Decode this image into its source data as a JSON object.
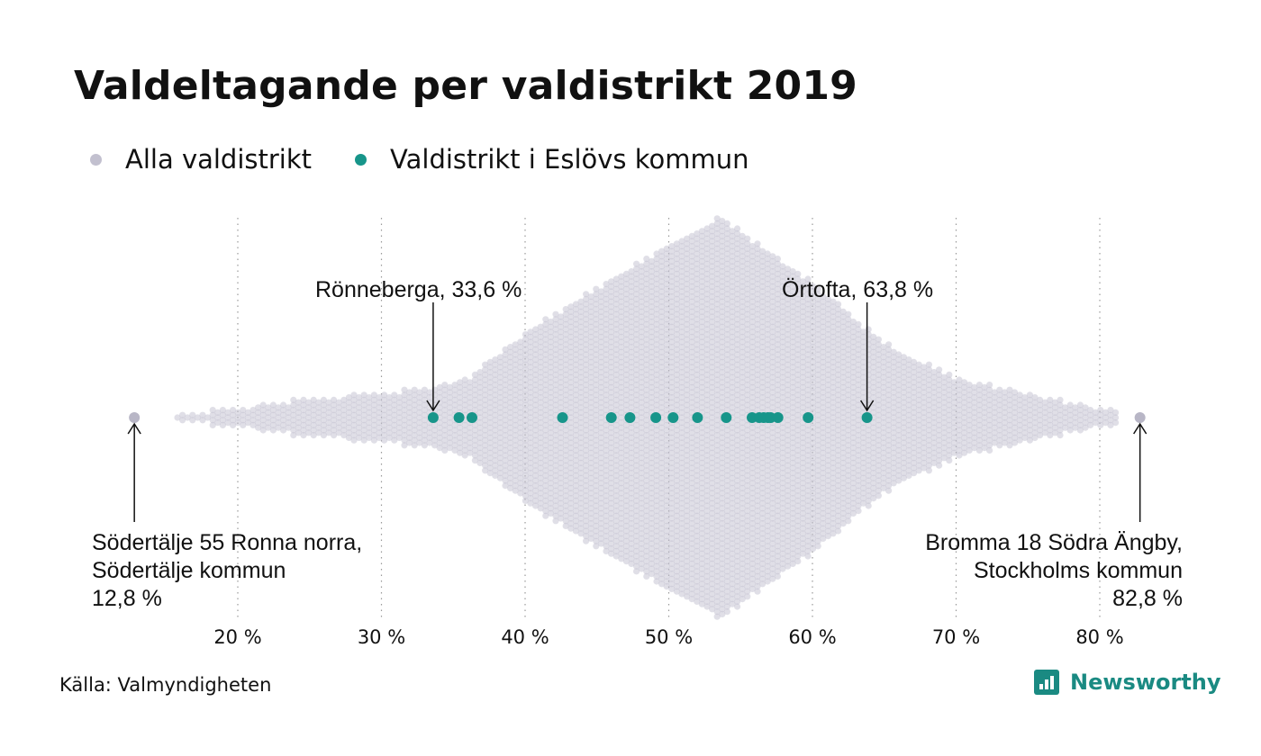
{
  "title": "Valdeltagande per valdistrikt 2019",
  "legend": [
    {
      "label": "Alla valdistrikt",
      "color": "#c2c0cf"
    },
    {
      "label": "Valdistrikt i Eslövs kommun",
      "color": "#17958a"
    }
  ],
  "source": "Källa: Valmyndigheten",
  "brand": "Newsworthy",
  "chart_data": {
    "type": "scatter",
    "subtype": "beeswarm",
    "xlim": [
      12,
      84
    ],
    "x_ticks": [
      20,
      30,
      40,
      50,
      60,
      70,
      80
    ],
    "x_tick_labels": [
      "20 %",
      "30 %",
      "40 %",
      "50 %",
      "60 %",
      "70 %",
      "80 %"
    ],
    "grid": "vertical dotted",
    "legend_position": "top-left",
    "series": [
      {
        "name": "Alla valdistrikt",
        "color": "#c2c0cf",
        "distribution_profile": [
          [
            12.8,
            1
          ],
          [
            16,
            1
          ],
          [
            20,
            2
          ],
          [
            25,
            4
          ],
          [
            30,
            5
          ],
          [
            33,
            6
          ],
          [
            36,
            8
          ],
          [
            40,
            17
          ],
          [
            45,
            26
          ],
          [
            48,
            31
          ],
          [
            51,
            36
          ],
          [
            53.7,
            40
          ],
          [
            56,
            35
          ],
          [
            60,
            27
          ],
          [
            65,
            15
          ],
          [
            67,
            12
          ],
          [
            70,
            8
          ],
          [
            75,
            5
          ],
          [
            78,
            3
          ],
          [
            80,
            2
          ],
          [
            82.8,
            1
          ]
        ],
        "min": 12.8,
        "max": 82.8
      },
      {
        "name": "Valdistrikt i Eslövs kommun",
        "color": "#17958a",
        "values": [
          33.6,
          35.4,
          36.3,
          42.6,
          46.0,
          47.3,
          49.1,
          50.3,
          52.0,
          54.0,
          55.8,
          56.3,
          56.6,
          56.9,
          57.1,
          57.6,
          59.7,
          63.8
        ]
      }
    ],
    "annotations": [
      {
        "lines": [
          "Rönneberga, 33,6 %"
        ],
        "x": 33.6
      },
      {
        "lines": [
          "Örtofta, 63,8 %"
        ],
        "x": 63.8
      },
      {
        "lines": [
          "Södertälje 55 Ronna norra,",
          "Södertälje kommun",
          "12,8 %"
        ],
        "x": 12.8
      },
      {
        "lines": [
          "Bromma 18 Södra Ängby,",
          "Stockholms kommun",
          "82,8 %"
        ],
        "x": 82.8
      }
    ]
  }
}
